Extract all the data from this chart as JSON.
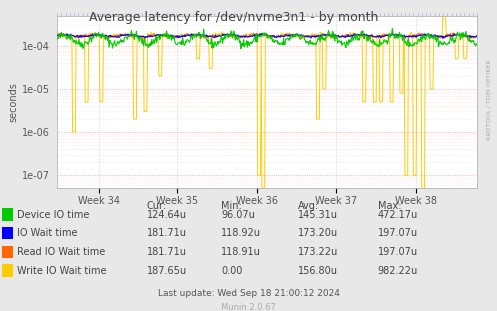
{
  "title": "Average latency for /dev/nvme3n1 - by month",
  "ylabel": "seconds",
  "xlabel_ticks": [
    "Week 34",
    "Week 35",
    "Week 36",
    "Week 37",
    "Week 38"
  ],
  "background_color": "#e8e8e8",
  "plot_bg_color": "#ffffff",
  "legend_items": [
    {
      "label": "Device IO time",
      "color": "#00cc00"
    },
    {
      "label": "IO Wait time",
      "color": "#0000ff"
    },
    {
      "label": "Read IO Wait time",
      "color": "#ff6600"
    },
    {
      "label": "Write IO Wait time",
      "color": "#ffcc00"
    }
  ],
  "legend_stats": {
    "headers": [
      "Cur:",
      "Min:",
      "Avg:",
      "Max:"
    ],
    "rows": [
      [
        "124.64u",
        "96.07u",
        "145.31u",
        "472.17u"
      ],
      [
        "181.71u",
        "118.92u",
        "173.20u",
        "197.07u"
      ],
      [
        "181.71u",
        "118.91u",
        "173.22u",
        "197.07u"
      ],
      [
        "187.65u",
        "0.00",
        "156.80u",
        "982.22u"
      ]
    ]
  },
  "footer": "Last update: Wed Sep 18 21:00:12 2024",
  "munin_version": "Munin 2.0.67",
  "rrdtool_label": "RRDTOOL / TOBI OETIKER",
  "num_points": 600,
  "ymin": 5e-08,
  "ymax": 0.0005,
  "yticks": [
    1e-07,
    1e-06,
    1e-05,
    0.0001
  ],
  "ytick_labels": [
    "1e-07",
    "1e-06",
    "1e-05",
    "1e-04"
  ],
  "base_green": 0.00014,
  "base_orange": 0.00017,
  "base_blue": 0.00017,
  "base_yellow": 0.00017
}
